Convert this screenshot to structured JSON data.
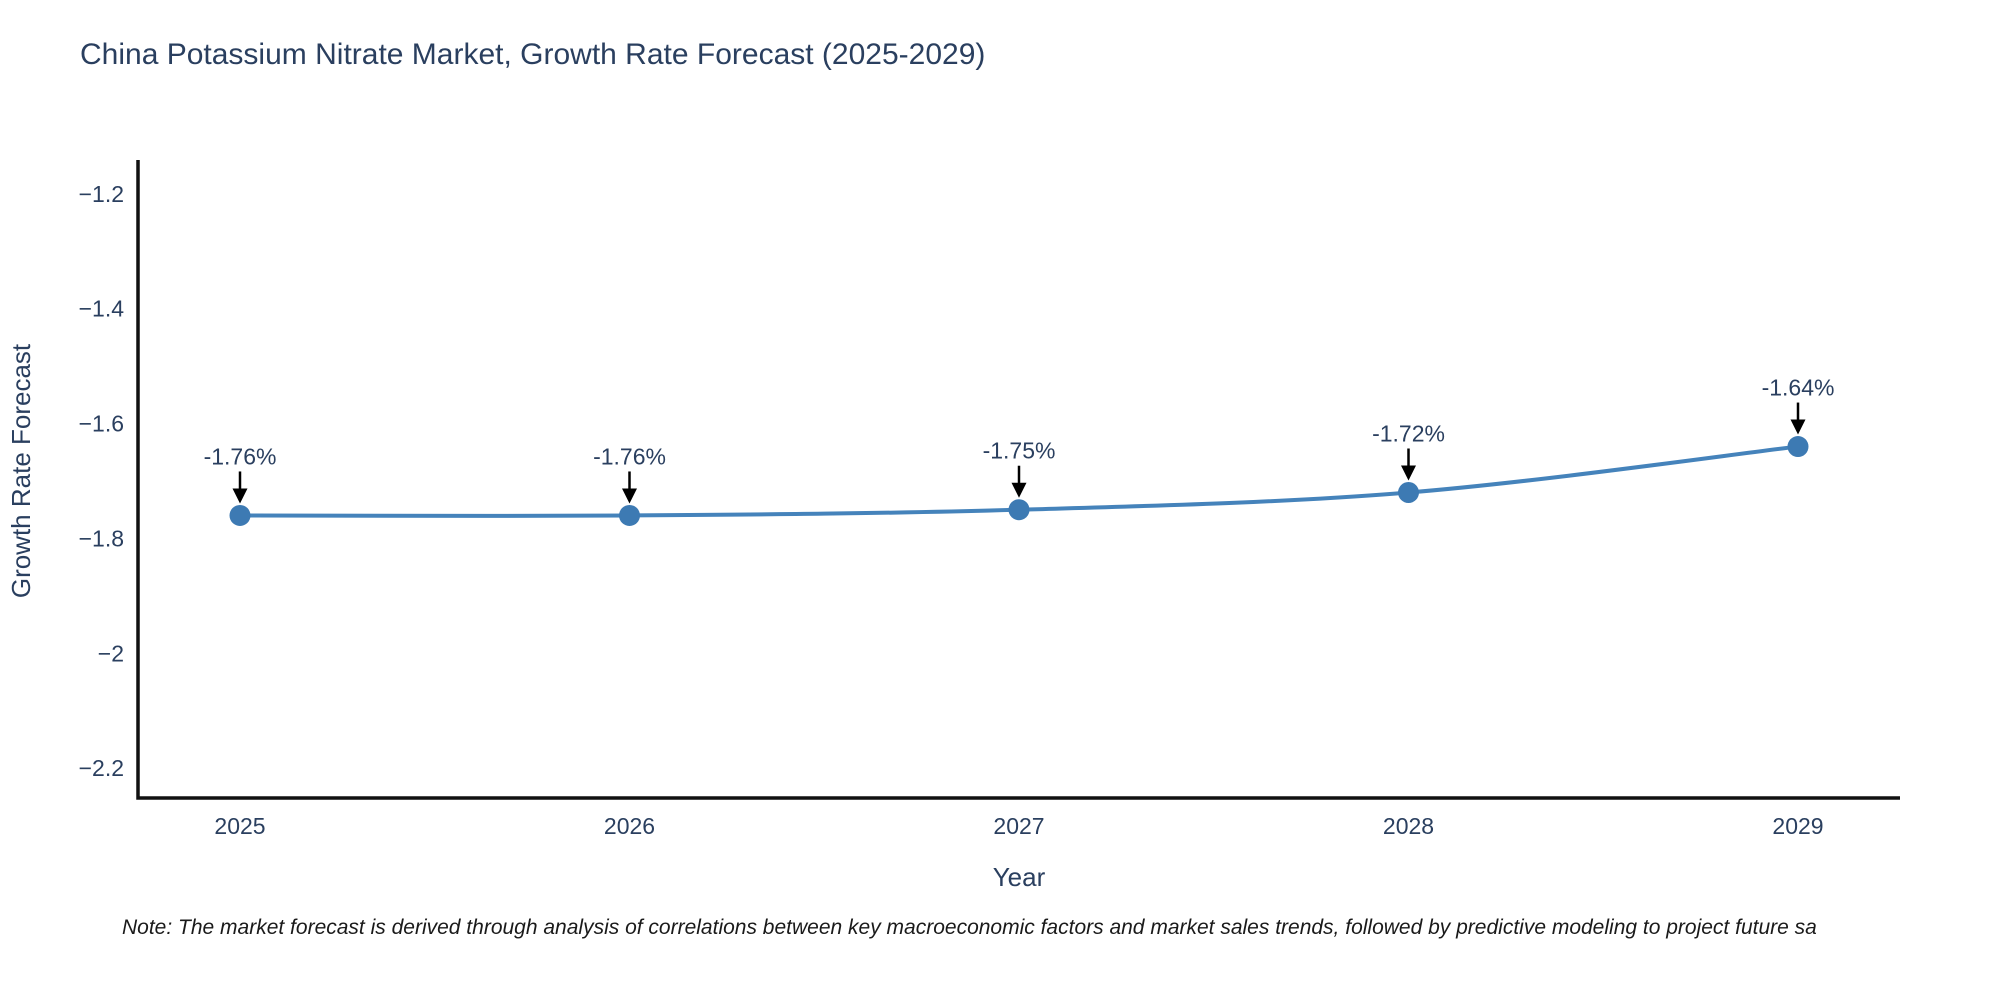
{
  "title": {
    "text": "China Potassium Nitrate Market, Growth Rate Forecast (2025-2029)",
    "color": "#2a3f5f"
  },
  "footnote": {
    "text": "Note: The market forecast is derived through analysis of correlations between key macroeconomic factors and market sales trends, followed by predictive modeling to project future sa"
  },
  "chart_data": {
    "type": "line",
    "title": "China Potassium Nitrate Market, Growth Rate Forecast (2025-2029)",
    "xlabel": "Year",
    "ylabel": "Growth Rate Forecast",
    "categories": [
      "2025",
      "2026",
      "2027",
      "2028",
      "2029"
    ],
    "series": [
      {
        "name": "Growth Rate Forecast",
        "values": [
          -1.76,
          -1.76,
          -1.75,
          -1.72,
          -1.64
        ]
      }
    ],
    "point_labels": [
      "-1.76%",
      "-1.76%",
      "-1.75%",
      "-1.72%",
      "-1.64%"
    ],
    "y_tick_labels": [
      "−1.2",
      "−1.4",
      "−1.6",
      "−1.8",
      "−2",
      "−2.2"
    ],
    "y_tick_values": [
      -1.2,
      -1.4,
      -1.6,
      -1.8,
      -2.0,
      -2.2
    ],
    "ylim": [
      -2.252,
      -1.141
    ],
    "grid": false,
    "legend": "none",
    "line_color": "#4583bb",
    "marker_color": "#3d7ab3",
    "arrow_color": "#000000",
    "axis_color": "#111111",
    "text_color": "#2a3f5f"
  }
}
